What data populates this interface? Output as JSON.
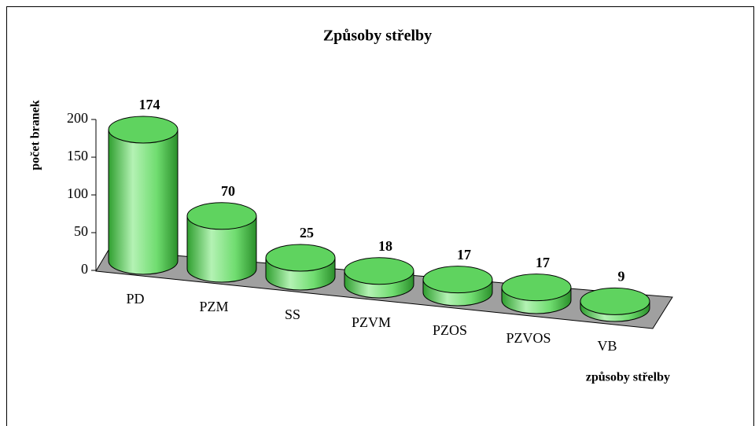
{
  "chart_data": {
    "type": "bar",
    "title": "Způsoby střelby",
    "ylabel": "počet branek",
    "xlabel": "způsoby střelby",
    "categories": [
      "PD",
      "PZM",
      "SS",
      "PZVM",
      "PZOS",
      "PZVOS",
      "VB"
    ],
    "values": [
      174,
      70,
      25,
      18,
      17,
      17,
      9
    ],
    "color": "#5fd35f",
    "ylim": [
      0,
      200
    ],
    "yticks": [
      0,
      50,
      100,
      150,
      200
    ]
  }
}
